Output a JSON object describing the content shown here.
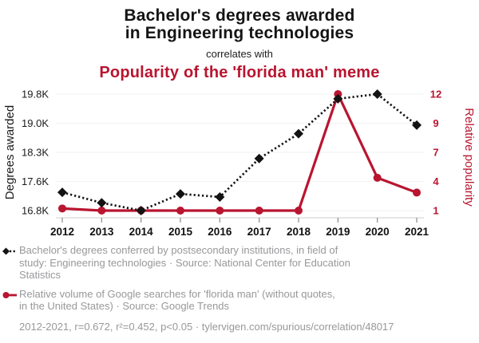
{
  "header": {
    "title_line1": "Bachelor's degrees awarded",
    "title_line2": "in Engineering technologies",
    "connector": "correlates with",
    "subtitle": "Popularity of the 'florida man' meme"
  },
  "colors": {
    "accent_red": "#b91530",
    "series_black": "#131313",
    "tick_text": "#1a1a1a",
    "legend_gray": "#98989b",
    "grid": "#f3f3f3",
    "axis_line": "#d6d6d6",
    "axis_tick": "#8a8a8a"
  },
  "chart_data": {
    "type": "line",
    "x": [
      2012,
      2013,
      2014,
      2015,
      2016,
      2017,
      2018,
      2019,
      2020,
      2021
    ],
    "series": [
      {
        "name": "Bachelor's degrees in Engineering technologies",
        "axis": "left",
        "style": "black-dotted-diamond",
        "values": [
          17270,
          17000,
          16800,
          17230,
          17150,
          18140,
          18780,
          19680,
          19800,
          19000
        ]
      },
      {
        "name": "Popularity of the 'florida man' meme",
        "axis": "right",
        "style": "red-solid-circle",
        "values": [
          1.2,
          1,
          1,
          1,
          1,
          1,
          1,
          12,
          4.1,
          2.7
        ]
      }
    ],
    "left_axis": {
      "label": "Degrees awarded",
      "ticks": [
        "19.8K",
        "19.0K",
        "18.3K",
        "17.6K",
        "16.8K"
      ],
      "min": 16800,
      "max": 19800
    },
    "right_axis": {
      "label": "Relative popularity",
      "ticks": [
        "12",
        "9",
        "7",
        "4",
        "1"
      ],
      "min": 1,
      "max": 12
    },
    "grid": "horizontal-only",
    "legend_position": "bottom-left"
  },
  "legend": {
    "items": [
      {
        "icon": "black-diamond-dotted-line",
        "lines": [
          "Bachelor's degrees conferred by postsecondary institutions, in field of",
          "study: Engineering technologies · Source: National Center for Education",
          "Statistics"
        ]
      },
      {
        "icon": "red-circle-solid-line",
        "lines": [
          "Relative volume of Google searches for 'florida man' (without quotes,",
          "in the United States) · Source: Google Trends"
        ]
      }
    ],
    "footnote": "2012-2021, r=0.672, r²=0.452, p<0.05 · tylervigen.com/spurious/correlation/48017"
  }
}
